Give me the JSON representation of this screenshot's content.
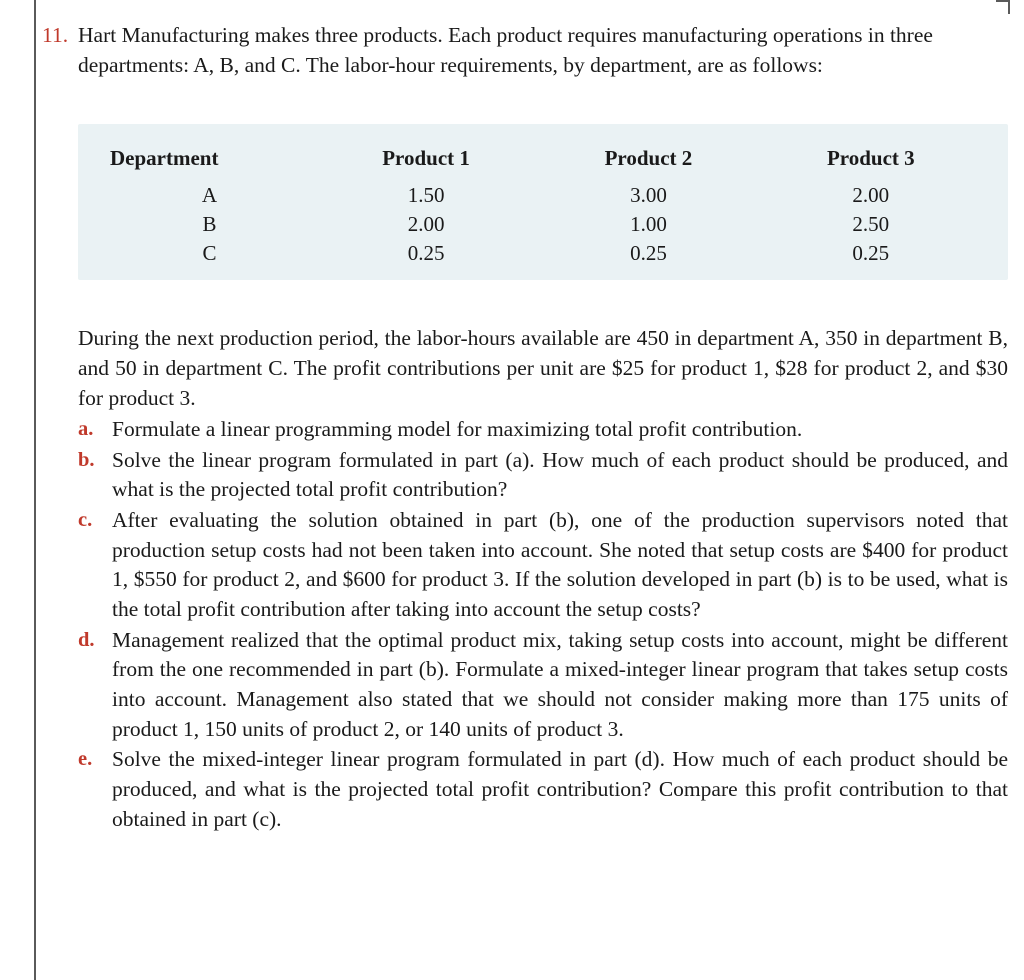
{
  "problem": {
    "number": "11.",
    "statement": "Hart Manufacturing makes three products. Each product requires manufacturing operations in three departments: A, B, and C. The labor-hour requirements, by department, are as follows:"
  },
  "table": {
    "type": "table",
    "background_color": "#eaf2f4",
    "header_fontweight": "bold",
    "columns": [
      "Department",
      "Product 1",
      "Product 2",
      "Product 3"
    ],
    "rows": [
      [
        "A",
        "1.50",
        "3.00",
        "2.00"
      ],
      [
        "B",
        "2.00",
        "1.00",
        "2.50"
      ],
      [
        "C",
        "0.25",
        "0.25",
        "0.25"
      ]
    ]
  },
  "continuation": "During the next production period, the labor-hours available are 450 in department A, 350 in department B, and 50 in department C. The profit contributions per unit are $25 for product 1, $28 for product 2, and $30 for product 3.",
  "parts": {
    "a": {
      "label": "a.",
      "text": "Formulate a linear programming model for maximizing total profit contribution."
    },
    "b": {
      "label": "b.",
      "text": "Solve the linear program formulated in part (a). How much of each product should be produced, and what is the projected total profit contribution?"
    },
    "c": {
      "label": "c.",
      "text": "After evaluating the solution obtained in part (b), one of the production supervisors noted that production setup costs had not been taken into account. She noted that setup costs are $400 for product 1, $550 for product 2, and $600 for product 3. If the solution developed in part (b) is to be used, what is the total profit contribution after taking into account the setup costs?"
    },
    "d": {
      "label": "d.",
      "text": "Management realized that the optimal product mix, taking setup costs into account, might be different from the one recommended in part (b). Formulate a mixed-integer linear program that takes setup costs into account. Management also stated that we should not consider making more than 175 units of product 1, 150 units of product 2, or 140 units of product 3."
    },
    "e": {
      "label": "e.",
      "text": "Solve the mixed-integer linear program formulated in part (d). How much of each product should be produced, and what is the projected total profit contribution? Compare this profit contribution to that obtained in part (c)."
    }
  },
  "colors": {
    "accent": "#c0392b",
    "text": "#1a1a1a",
    "rule": "#5a5a5a",
    "table_bg": "#eaf2f4",
    "page_bg": "#ffffff"
  },
  "typography": {
    "body_font": "Times New Roman",
    "body_size_pt": 16,
    "table_size_pt": 16,
    "label_weight": "bold"
  }
}
